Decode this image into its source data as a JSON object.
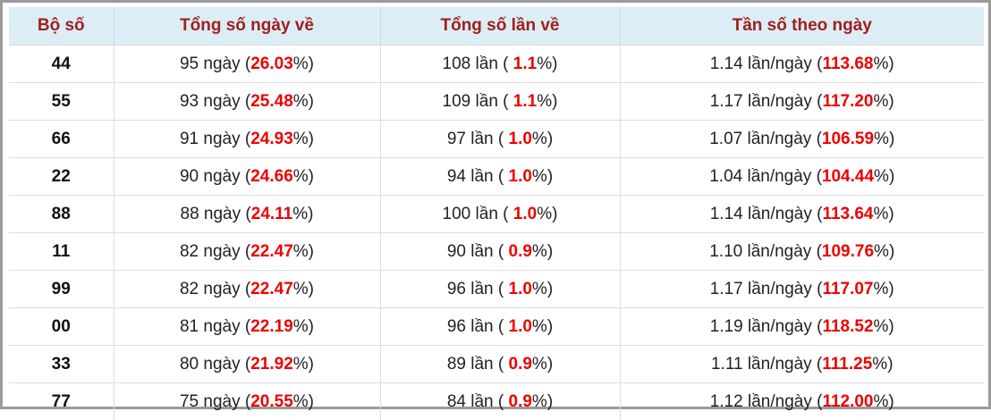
{
  "table": {
    "header": [
      "Bộ số",
      "Tổng số ngày về",
      "Tổng số lần về",
      "Tần số theo ngày"
    ],
    "rows": [
      [
        "44",
        [
          "95 ngày (",
          "26.03",
          "%)"
        ],
        [
          "108 lần ( ",
          "1.1",
          "%)"
        ],
        [
          "1.14 lần/ngày (",
          "113.68",
          "%)"
        ]
      ],
      [
        "55",
        [
          "93 ngày (",
          "25.48",
          "%)"
        ],
        [
          "109 lần ( ",
          "1.1",
          "%)"
        ],
        [
          "1.17 lần/ngày (",
          "117.20",
          "%)"
        ]
      ],
      [
        "66",
        [
          "91 ngày (",
          "24.93",
          "%)"
        ],
        [
          "97 lần ( ",
          "1.0",
          "%)"
        ],
        [
          "1.07 lần/ngày (",
          "106.59",
          "%)"
        ]
      ],
      [
        "22",
        [
          "90 ngày (",
          "24.66",
          "%)"
        ],
        [
          "94 lần ( ",
          "1.0",
          "%)"
        ],
        [
          "1.04 lần/ngày (",
          "104.44",
          "%)"
        ]
      ],
      [
        "88",
        [
          "88 ngày (",
          "24.11",
          "%)"
        ],
        [
          "100 lần ( ",
          "1.0",
          "%)"
        ],
        [
          "1.14 lần/ngày (",
          "113.64",
          "%)"
        ]
      ],
      [
        "11",
        [
          "82 ngày (",
          "22.47",
          "%)"
        ],
        [
          "90 lần ( ",
          "0.9",
          "%)"
        ],
        [
          "1.10 lần/ngày (",
          "109.76",
          "%)"
        ]
      ],
      [
        "99",
        [
          "82 ngày (",
          "22.47",
          "%)"
        ],
        [
          "96 lần ( ",
          "1.0",
          "%)"
        ],
        [
          "1.17 lần/ngày (",
          "117.07",
          "%)"
        ]
      ],
      [
        "00",
        [
          "81 ngày (",
          "22.19",
          "%)"
        ],
        [
          "96 lần ( ",
          "1.0",
          "%)"
        ],
        [
          "1.19 lần/ngày (",
          "118.52",
          "%)"
        ]
      ],
      [
        "33",
        [
          "80 ngày (",
          "21.92",
          "%)"
        ],
        [
          "89 lần ( ",
          "0.9",
          "%)"
        ],
        [
          "1.11 lần/ngày (",
          "111.25",
          "%)"
        ]
      ],
      [
        "77",
        [
          "75 ngày (",
          "20.55",
          "%)"
        ],
        [
          "84 lần ( ",
          "0.9",
          "%)"
        ],
        [
          "1.12 lần/ngày (",
          "112.00",
          "%)"
        ]
      ]
    ]
  }
}
